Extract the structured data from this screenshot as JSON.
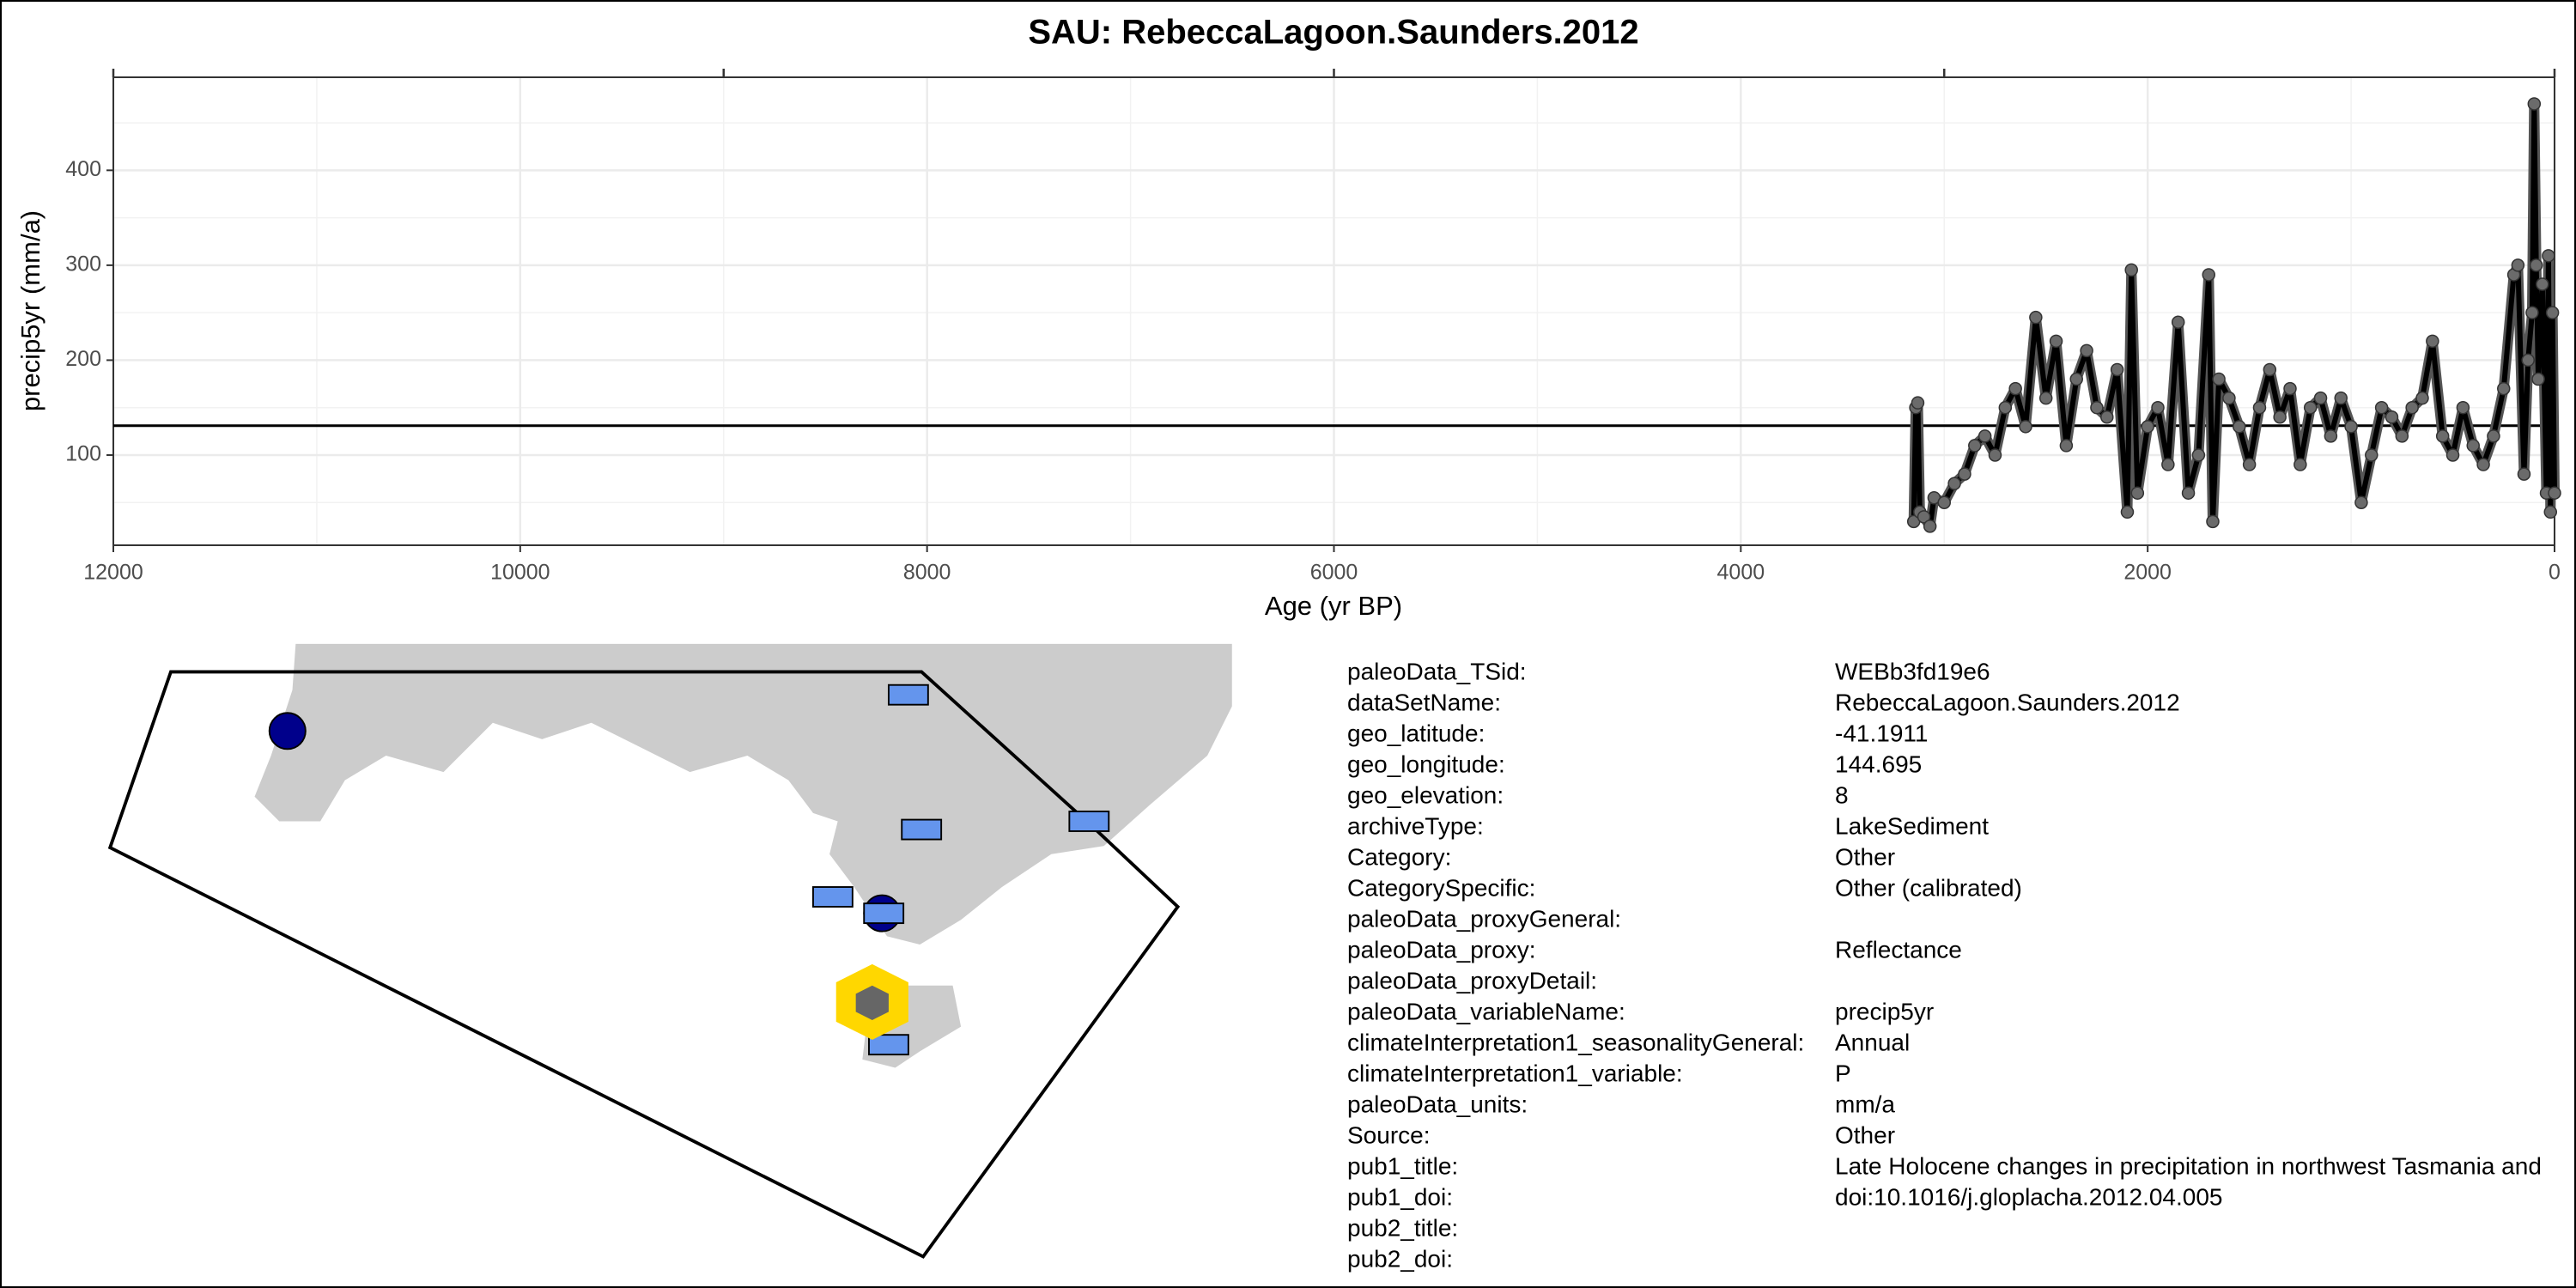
{
  "chart_data": {
    "type": "line",
    "title": "SAU: RebeccaLagoon.Saunders.2012",
    "xlabel": "Age (yr BP)",
    "ylabel": "precip5yr (mm/a)",
    "xlim": [
      12000,
      0
    ],
    "xticks": [
      12000,
      10000,
      8000,
      6000,
      4000,
      2000,
      0
    ],
    "top_xticks": [
      12000,
      9000,
      6000,
      3000,
      0
    ],
    "ylim": [
      5,
      498
    ],
    "yticks": [
      100,
      200,
      300,
      400
    ],
    "grid": true,
    "color": "#000000",
    "marker_color": "#6b6b6b",
    "reference_line": 131,
    "x": [
      3150,
      3140,
      3130,
      3120,
      3100,
      3070,
      3050,
      3000,
      2950,
      2900,
      2850,
      2800,
      2750,
      2700,
      2650,
      2600,
      2550,
      2500,
      2450,
      2400,
      2350,
      2300,
      2250,
      2200,
      2150,
      2100,
      2080,
      2050,
      2000,
      1950,
      1900,
      1850,
      1800,
      1750,
      1700,
      1680,
      1650,
      1600,
      1550,
      1500,
      1450,
      1400,
      1350,
      1300,
      1250,
      1200,
      1150,
      1100,
      1050,
      1000,
      950,
      900,
      850,
      800,
      750,
      700,
      650,
      600,
      550,
      500,
      450,
      400,
      350,
      300,
      250,
      200,
      180,
      150,
      130,
      110,
      100,
      90,
      80,
      60,
      40,
      30,
      20,
      10,
      0
    ],
    "values": [
      30,
      150,
      155,
      40,
      35,
      25,
      55,
      50,
      70,
      80,
      110,
      120,
      100,
      150,
      170,
      130,
      245,
      160,
      220,
      110,
      180,
      210,
      150,
      140,
      190,
      40,
      295,
      60,
      130,
      150,
      90,
      240,
      60,
      100,
      290,
      30,
      180,
      160,
      130,
      90,
      150,
      190,
      140,
      170,
      90,
      150,
      160,
      120,
      160,
      130,
      50,
      100,
      150,
      140,
      120,
      150,
      160,
      220,
      120,
      100,
      150,
      110,
      90,
      120,
      170,
      290,
      300,
      80,
      200,
      250,
      470,
      300,
      180,
      280,
      60,
      310,
      40,
      250,
      60
    ]
  },
  "metadata": {
    "rows": [
      {
        "key": "paleoData_TSid:",
        "value": "WEBb3fd19e6"
      },
      {
        "key": "dataSetName:",
        "value": "RebeccaLagoon.Saunders.2012"
      },
      {
        "key": "geo_latitude:",
        "value": "-41.1911"
      },
      {
        "key": "geo_longitude:",
        "value": "144.695"
      },
      {
        "key": "geo_elevation:",
        "value": "8"
      },
      {
        "key": "archiveType:",
        "value": "LakeSediment"
      },
      {
        "key": "Category:",
        "value": "Other"
      },
      {
        "key": "CategorySpecific:",
        "value": "Other (calibrated)"
      },
      {
        "key": "paleoData_proxyGeneral:"
      },
      {
        "key": "paleoData_proxy:",
        "value": "Reflectance"
      },
      {
        "key": "paleoData_proxyDetail:"
      },
      {
        "key": "paleoData_variableName:",
        "value": "precip5yr"
      },
      {
        "key": "climateInterpretation1_seasonalityGeneral:",
        "value": "Annual"
      },
      {
        "key": "climateInterpretation1_variable:",
        "value": "P"
      },
      {
        "key": "paleoData_units:",
        "value": "mm/a"
      },
      {
        "key": "Source:",
        "value": "Other"
      },
      {
        "key": "pub1_title:",
        "value": "Late Holocene changes in precipitation in northwest Tasmania and"
      },
      {
        "key": "pub1_doi:",
        "value": "doi:10.1016/j.gloplacha.2012.04.005"
      },
      {
        "key": "pub2_title:"
      },
      {
        "key": "pub2_doi:"
      }
    ]
  }
}
